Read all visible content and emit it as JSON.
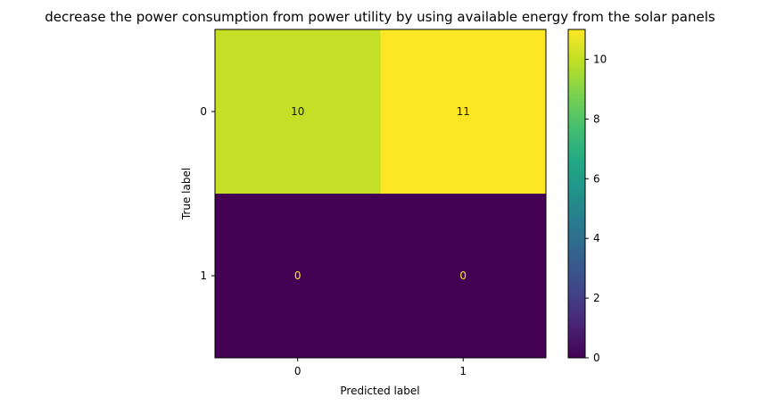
{
  "chart_data": {
    "type": "heatmap",
    "title": "decrease the power consumption from power utility by using available energy from the solar panels",
    "xlabel": "Predicted label",
    "ylabel": "True label",
    "x_categories": [
      "0",
      "1"
    ],
    "y_categories": [
      "0",
      "1"
    ],
    "values": [
      [
        10,
        11
      ],
      [
        0,
        0
      ]
    ],
    "colormap": "viridis",
    "colorbar": {
      "range": [
        0,
        11
      ],
      "ticks": [
        0,
        2,
        4,
        6,
        8,
        10
      ]
    },
    "grid": false
  }
}
